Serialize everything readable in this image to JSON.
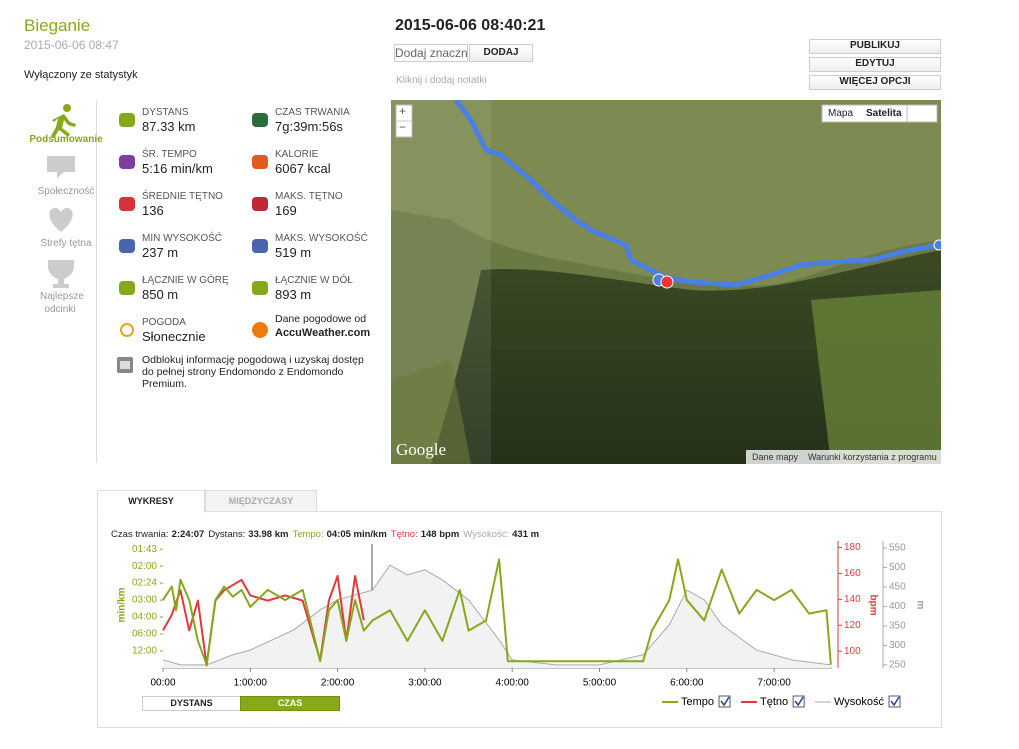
{
  "header": {
    "title": "Bieganie",
    "date": "2015-06-06 08:47",
    "status": "Wyłączony ze statystyk",
    "workout_time": "2015-06-06 08:40:21"
  },
  "tags": {
    "placeholder": "Dodaj znacznik",
    "add_button": "DODAJ",
    "notes": "Kliknij i dodaj notatki"
  },
  "actions": [
    "PUBLIKUJ",
    "EDYTUJ",
    "WIĘCEJ OPCJI"
  ],
  "nav": [
    "Podsumowanie",
    "Społeczność",
    "Strefy tętna",
    "Najlepsze odcinki"
  ],
  "stats": [
    {
      "label": "DYSTANS",
      "value": "87.33 km"
    },
    {
      "label": "CZAS TRWANIA",
      "value": "7g:39m:56s"
    },
    {
      "label": "ŚR. TEMPO",
      "value": "5:16 min/km"
    },
    {
      "label": "KALORIE",
      "value": "6067 kcal"
    },
    {
      "label": "ŚREDNIE TĘTNO",
      "value": "136"
    },
    {
      "label": "MAKS. TĘTNO",
      "value": "169"
    },
    {
      "label": "MIN WYSOKOŚĆ",
      "value": "237 m"
    },
    {
      "label": "MAKS. WYSOKOŚĆ",
      "value": "519 m"
    },
    {
      "label": "ŁĄCZNIE W GÓRĘ",
      "value": "850 m"
    },
    {
      "label": "ŁĄCZNIE W DÓŁ",
      "value": "893 m"
    },
    {
      "label": "POGODA",
      "value": "Słonecznie"
    }
  ],
  "weather_source": {
    "label": "Dane pogodowe od",
    "name": "AccuWeather.com"
  },
  "premium_note": "Odblokuj informację pogodową i uzyskaj dostęp do pełnej strony Endomondo z Endomondo Premium.",
  "map": {
    "zoom_in": "+",
    "zoom_out": "−",
    "map_button": "Mapa",
    "satellite_button": "Satelita",
    "logo": "Google",
    "data_link": "Dane mapy",
    "terms_link": "Warunki korzystania z programu"
  },
  "tabs": [
    "WYKRESY",
    "MIĘDZYCZASY"
  ],
  "summary": [
    {
      "label": "Czas trwania:",
      "value": "2:24:07"
    },
    {
      "label": "Dystans:",
      "value": "33.98 km"
    },
    {
      "label": "Tempo:",
      "value": "04:05 min/km"
    },
    {
      "label": "Tętno:",
      "value": "148 bpm"
    },
    {
      "label": "Wysokość:",
      "value": "431 m"
    }
  ],
  "toggles": [
    "DYSTANS",
    "CZAS"
  ],
  "chart_data": {
    "type": "line",
    "xlim": [
      0,
      7.666
    ],
    "xticks": [
      {
        "value": 0,
        "label": "00:00"
      },
      {
        "value": 1,
        "label": "1:00:00"
      },
      {
        "value": 2,
        "label": "2:00:00"
      },
      {
        "value": 3,
        "label": "3:00:00"
      },
      {
        "value": 4,
        "label": "4:00:00"
      },
      {
        "value": 5,
        "label": "5:00:00"
      },
      {
        "value": 6,
        "label": "6:00:00"
      },
      {
        "value": 7,
        "label": "7:00:00"
      }
    ],
    "ylabel": "min/km",
    "ylim": [
      0,
      37.4
    ],
    "yticks": [
      {
        "value": 35,
        "label": "01:43"
      },
      {
        "value": 30,
        "label": "02:00"
      },
      {
        "value": 25,
        "label": "02:24"
      },
      {
        "value": 20,
        "label": "03:00"
      },
      {
        "value": 15,
        "label": "04:00"
      },
      {
        "value": 10,
        "label": "06:00"
      },
      {
        "value": 5,
        "label": "12:00"
      }
    ],
    "y2label": "bpm",
    "y2lim": [
      87,
      185
    ],
    "y2ticks": [
      180,
      160,
      140,
      120,
      100
    ],
    "y3label": "m",
    "y3lim": [
      242,
      568
    ],
    "y3ticks": [
      550,
      500,
      450,
      400,
      350,
      300,
      250
    ],
    "series": [
      {
        "name": "Tempo",
        "color": "#86a91c",
        "axis": "y",
        "x": [
          0,
          0.1,
          0.15,
          0.2,
          0.3,
          0.4,
          0.5,
          0.6,
          0.7,
          0.8,
          0.9,
          1.0,
          1.2,
          1.4,
          1.6,
          1.8,
          1.9,
          2.0,
          2.1,
          2.2,
          2.3,
          2.4,
          2.6,
          2.8,
          3.0,
          3.2,
          3.4,
          3.5,
          3.7,
          3.85,
          3.95,
          4.5,
          5.0,
          5.5,
          5.6,
          5.8,
          5.9,
          6.0,
          6.2,
          6.4,
          6.6,
          6.8,
          7.0,
          7.2,
          7.4,
          7.6,
          7.65
        ],
        "values": [
          20,
          24,
          17,
          26,
          20,
          8,
          1,
          20,
          24,
          21,
          23,
          18,
          23,
          20,
          23,
          2,
          17,
          20,
          8,
          20,
          11,
          14,
          17,
          8,
          17,
          8,
          23,
          11,
          14,
          32,
          2,
          2,
          2,
          2,
          11,
          20,
          32,
          20,
          14,
          29,
          16,
          23,
          20,
          23,
          16,
          17,
          1
        ]
      },
      {
        "name": "Tętno",
        "color": "#e03a3a",
        "axis": "y2",
        "x": [
          0,
          0.1,
          0.2,
          0.3,
          0.4,
          0.5,
          0.6,
          0.7,
          0.8,
          0.9,
          1.0,
          1.2,
          1.4,
          1.6,
          1.8,
          1.9,
          2.0,
          2.1,
          2.2,
          2.3
        ],
        "values": [
          116,
          128,
          147,
          116,
          139,
          89,
          139,
          147,
          151,
          155,
          143,
          139,
          143,
          139,
          93,
          139,
          158,
          108,
          158,
          124
        ]
      },
      {
        "name": "Wysokość",
        "color": "#aaaaaa",
        "axis": "y3",
        "area": true,
        "x": [
          0,
          0.2,
          0.5,
          0.8,
          1.0,
          1.5,
          1.8,
          2.0,
          2.4,
          2.6,
          2.8,
          3.0,
          3.2,
          3.5,
          3.85,
          4.0,
          4.5,
          5.0,
          5.5,
          5.8,
          6.0,
          6.2,
          6.4,
          6.8,
          7.2,
          7.65
        ],
        "values": [
          263,
          250,
          250,
          276,
          288,
          340,
          391,
          417,
          442,
          506,
          481,
          494,
          468,
          417,
          314,
          263,
          250,
          250,
          276,
          353,
          442,
          417,
          353,
          288,
          263,
          250
        ]
      }
    ]
  }
}
